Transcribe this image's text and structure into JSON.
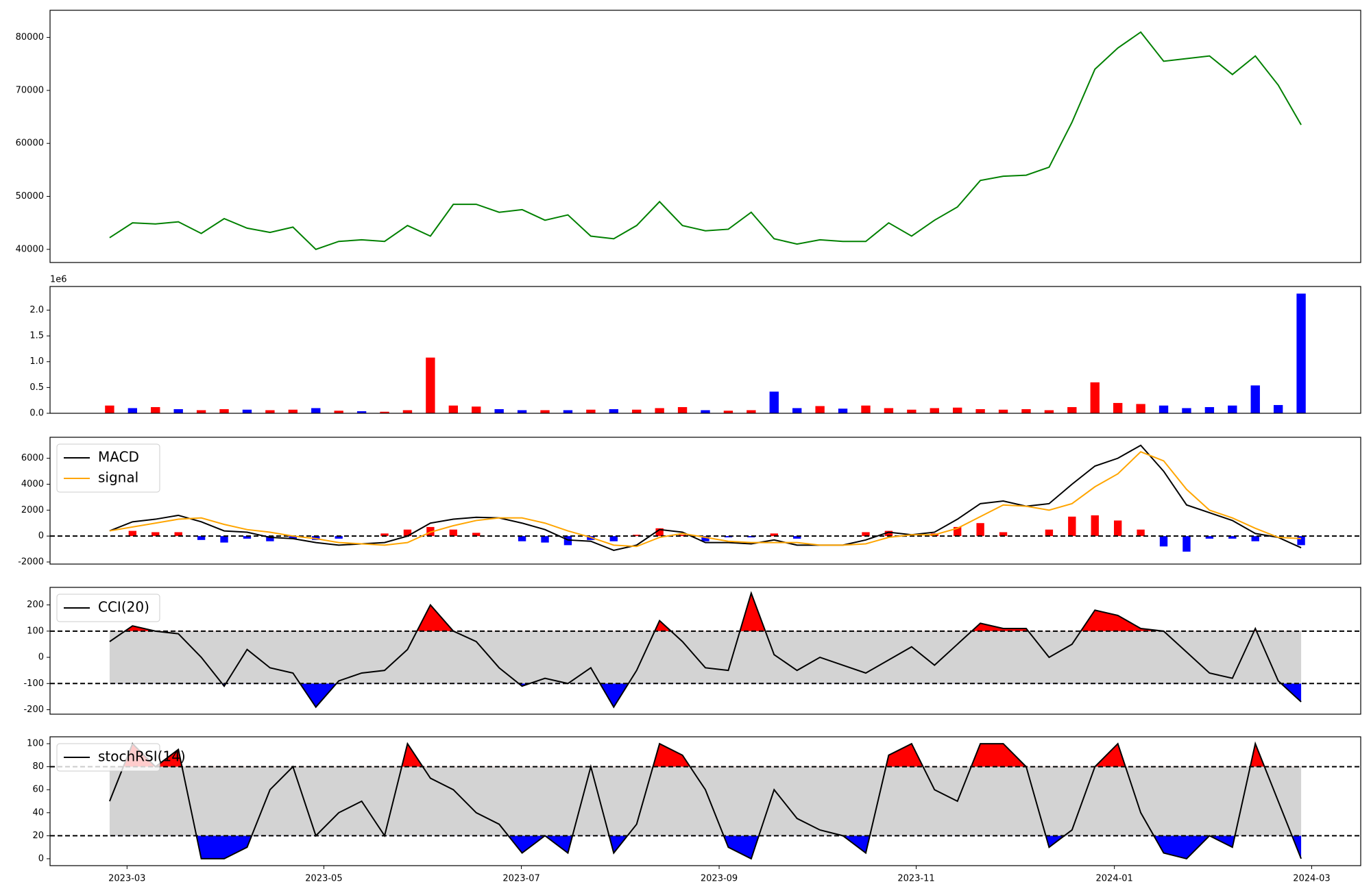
{
  "chart_data": [
    {
      "type": "line",
      "xlim": [
        -2.6,
        54.6
      ],
      "ylim": [
        37520,
        85120
      ],
      "yticks": [
        40000,
        50000,
        60000,
        70000,
        80000
      ],
      "series": [
        {
          "color": "#008000",
          "values": [
            42200,
            45000,
            44800,
            45200,
            43000,
            45800,
            44000,
            43200,
            44200,
            40000,
            41500,
            41800,
            41500,
            44500,
            42500,
            48500,
            48500,
            47000,
            47500,
            45500,
            46500,
            42500,
            42000,
            44500,
            49000,
            44500,
            43500,
            43800,
            47000,
            42000,
            41000,
            41800,
            41500,
            41500,
            45000,
            42500,
            45500,
            48000,
            53000,
            53800,
            54000,
            55500,
            64000,
            74000,
            78000,
            81000,
            75500,
            76000,
            76500,
            73000,
            76500,
            71000,
            63500
          ]
        }
      ]
    },
    {
      "type": "bar",
      "xlim": [
        -2.6,
        54.6
      ],
      "ylim": [
        0,
        2458000
      ],
      "yticks": [
        {
          "value": 0,
          "label": "0.0"
        },
        {
          "value": 500000,
          "label": "0.5"
        },
        {
          "value": 1000000,
          "label": "1.0"
        },
        {
          "value": 1500000,
          "label": "1.5"
        },
        {
          "value": 2000000,
          "label": "2.0"
        }
      ],
      "offset_label": "1e6",
      "values": [
        150000,
        100000,
        120000,
        80000,
        60000,
        80000,
        70000,
        60000,
        70000,
        100000,
        50000,
        40000,
        30000,
        60000,
        1080000,
        150000,
        130000,
        80000,
        60000,
        60000,
        60000,
        70000,
        80000,
        70000,
        100000,
        120000,
        60000,
        50000,
        60000,
        420000,
        100000,
        140000,
        90000,
        150000,
        100000,
        70000,
        100000,
        110000,
        80000,
        70000,
        80000,
        60000,
        120000,
        600000,
        200000,
        180000,
        150000,
        100000,
        120000,
        150000,
        540000,
        160000,
        2320000
      ],
      "colors": [
        "#ff0000",
        "#0000ff",
        "#ff0000",
        "#0000ff",
        "#ff0000",
        "#ff0000",
        "#0000ff",
        "#ff0000",
        "#ff0000",
        "#0000ff",
        "#ff0000",
        "#0000ff",
        "#ff0000",
        "#ff0000",
        "#ff0000",
        "#ff0000",
        "#ff0000",
        "#0000ff",
        "#0000ff",
        "#ff0000",
        "#0000ff",
        "#ff0000",
        "#0000ff",
        "#ff0000",
        "#ff0000",
        "#ff0000",
        "#0000ff",
        "#ff0000",
        "#ff0000",
        "#0000ff",
        "#0000ff",
        "#ff0000",
        "#0000ff",
        "#ff0000",
        "#ff0000",
        "#ff0000",
        "#ff0000",
        "#ff0000",
        "#ff0000",
        "#ff0000",
        "#ff0000",
        "#ff0000",
        "#ff0000",
        "#ff0000",
        "#ff0000",
        "#ff0000",
        "#0000ff",
        "#0000ff",
        "#0000ff",
        "#0000ff",
        "#0000ff",
        "#0000ff",
        "#0000ff"
      ]
    },
    {
      "type": "line",
      "xlim": [
        -2.6,
        54.6
      ],
      "ylim": [
        -2160,
        7620
      ],
      "yticks": [
        -2000,
        0,
        2000,
        4000,
        6000
      ],
      "hlines": [
        0
      ],
      "legend": "upper left",
      "histogram": {
        "positive_color": "#ff0000",
        "negative_color": "#0000ff",
        "values": [
          0,
          400,
          300,
          300,
          -300,
          -500,
          -200,
          -400,
          -200,
          -300,
          -200,
          0,
          200,
          500,
          700,
          500,
          250,
          0,
          -400,
          -500,
          -700,
          -300,
          -400,
          100,
          600,
          100,
          -400,
          -100,
          -100,
          200,
          -200,
          0,
          0,
          300,
          400,
          0,
          200,
          700,
          1000,
          300,
          0,
          500,
          1500,
          1600,
          1200,
          500,
          -800,
          -1200,
          -200,
          -200,
          -400,
          0,
          -700
        ]
      },
      "series": [
        {
          "name": "MACD",
          "color": "#000000",
          "values": [
            400,
            1100,
            1300,
            1600,
            1100,
            400,
            300,
            -100,
            -200,
            -500,
            -700,
            -600,
            -500,
            0,
            1000,
            1300,
            1450,
            1400,
            1000,
            500,
            -300,
            -400,
            -1100,
            -700,
            500,
            300,
            -500,
            -500,
            -600,
            -300,
            -700,
            -700,
            -700,
            -300,
            300,
            100,
            300,
            1300,
            2500,
            2700,
            2300,
            2500,
            4000,
            5400,
            6000,
            7000,
            5000,
            2400,
            1800,
            1200,
            200,
            -100,
            -900
          ]
        },
        {
          "name": "signal",
          "color": "#ffa500",
          "values": [
            400,
            700,
            1000,
            1300,
            1400,
            900,
            500,
            300,
            0,
            -200,
            -500,
            -600,
            -700,
            -500,
            300,
            800,
            1200,
            1400,
            1400,
            1000,
            400,
            -100,
            -700,
            -800,
            -100,
            200,
            -100,
            -400,
            -500,
            -500,
            -500,
            -700,
            -700,
            -600,
            -100,
            100,
            100,
            600,
            1500,
            2400,
            2300,
            2000,
            2500,
            3800,
            4800,
            6500,
            5800,
            3600,
            2000,
            1400,
            600,
            -100,
            -200
          ]
        }
      ]
    },
    {
      "type": "line",
      "xlim": [
        -2.6,
        54.6
      ],
      "ylim": [
        -217,
        267
      ],
      "yticks": [
        -200,
        -100,
        0,
        100,
        200
      ],
      "legend": "upper left",
      "band": {
        "lower": -100,
        "upper": 100,
        "color": "#d3d3d3",
        "above_color": "#ff0000",
        "below_color": "#0000ff"
      },
      "series": [
        {
          "name": "CCI(20)",
          "color": "#000000",
          "values": [
            60,
            120,
            100,
            90,
            0,
            -110,
            30,
            -40,
            -60,
            -190,
            -90,
            -60,
            -50,
            30,
            200,
            100,
            60,
            -40,
            -110,
            -80,
            -100,
            -40,
            -190,
            -50,
            140,
            60,
            -40,
            -50,
            245,
            10,
            -50,
            0,
            -30,
            -60,
            -10,
            40,
            -30,
            50,
            130,
            110,
            110,
            0,
            50,
            180,
            160,
            110,
            100,
            20,
            -60,
            -80,
            110,
            -90,
            -170
          ]
        }
      ]
    },
    {
      "type": "line",
      "xlim": [
        -2.6,
        54.6
      ],
      "ylim": [
        -6,
        106
      ],
      "yticks": [
        0,
        20,
        40,
        60,
        80,
        100
      ],
      "legend": "upper left",
      "band": {
        "lower": 20,
        "upper": 80,
        "color": "#d3d3d3",
        "above_color": "#ff0000",
        "below_color": "#0000ff"
      },
      "series": [
        {
          "name": "stochRSI(14)",
          "color": "#000000",
          "values": [
            50,
            100,
            80,
            95,
            0,
            0,
            10,
            60,
            80,
            20,
            40,
            50,
            20,
            100,
            70,
            60,
            40,
            30,
            5,
            20,
            5,
            80,
            5,
            30,
            100,
            90,
            60,
            10,
            0,
            60,
            35,
            25,
            20,
            5,
            90,
            100,
            60,
            50,
            100,
            100,
            80,
            10,
            25,
            80,
            100,
            40,
            5,
            0,
            20,
            10,
            100,
            50,
            0
          ]
        }
      ],
      "xticks": [
        {
          "value": 0.76,
          "label": "2023-03"
        },
        {
          "value": 9.35,
          "label": "2023-05"
        },
        {
          "value": 17.97,
          "label": "2023-07"
        },
        {
          "value": 26.6,
          "label": "2023-09"
        },
        {
          "value": 35.2,
          "label": "2023-11"
        },
        {
          "value": 43.85,
          "label": "2024-01"
        },
        {
          "value": 52.46,
          "label": "2024-03"
        }
      ]
    }
  ]
}
